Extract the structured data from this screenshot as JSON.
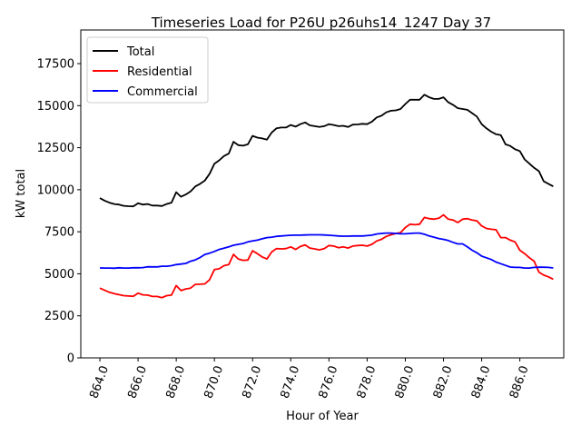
{
  "chart_data": {
    "type": "line",
    "title": "Timeseries Load for P26U p26uhs14_1247  Day 37",
    "xlabel": "Hour of Year",
    "ylabel": "kW total",
    "xlim": [
      863.0,
      888.3
    ],
    "ylim": [
      0,
      19500
    ],
    "x_ticks": [
      "864.0",
      "866.0",
      "868.0",
      "870.0",
      "872.0",
      "874.0",
      "876.0",
      "878.0",
      "880.0",
      "882.0",
      "884.0",
      "886.0"
    ],
    "y_ticks": [
      "0",
      "2500",
      "5000",
      "7500",
      "10000",
      "12500",
      "15000",
      "17500"
    ],
    "x_tick_values": [
      864,
      866,
      868,
      870,
      872,
      874,
      876,
      878,
      880,
      882,
      884,
      886
    ],
    "y_tick_values": [
      0,
      2500,
      5000,
      7500,
      10000,
      12500,
      15000,
      17500
    ],
    "legend_position": "top-left",
    "x": [
      864.0,
      864.25,
      864.5,
      864.75,
      865.0,
      865.25,
      865.5,
      865.75,
      866.0,
      866.25,
      866.5,
      866.75,
      867.0,
      867.25,
      867.5,
      867.75,
      868.0,
      868.25,
      868.5,
      868.75,
      869.0,
      869.25,
      869.5,
      869.75,
      870.0,
      870.25,
      870.5,
      870.75,
      871.0,
      871.25,
      871.5,
      871.75,
      872.0,
      872.25,
      872.5,
      872.75,
      873.0,
      873.25,
      873.5,
      873.75,
      874.0,
      874.25,
      874.5,
      874.75,
      875.0,
      875.25,
      875.5,
      875.75,
      876.0,
      876.25,
      876.5,
      876.75,
      877.0,
      877.25,
      877.5,
      877.75,
      878.0,
      878.25,
      878.5,
      878.75,
      879.0,
      879.25,
      879.5,
      879.75,
      880.0,
      880.25,
      880.5,
      880.75,
      881.0,
      881.25,
      881.5,
      881.75,
      882.0,
      882.25,
      882.5,
      882.75,
      883.0,
      883.25,
      883.5,
      883.75,
      884.0,
      884.25,
      884.5,
      884.75,
      885.0,
      885.25,
      885.5,
      885.75,
      886.0,
      886.25,
      886.5,
      886.75,
      887.0,
      887.25,
      887.5,
      887.75
    ],
    "series": [
      {
        "name": "Total",
        "color": "#000000",
        "values": [
          9500,
          9350,
          9230,
          9150,
          9120,
          9040,
          9020,
          9010,
          9200,
          9120,
          9150,
          9060,
          9060,
          9030,
          9150,
          9230,
          9850,
          9580,
          9720,
          9900,
          10200,
          10350,
          10550,
          10950,
          11550,
          11750,
          12000,
          12150,
          12850,
          12650,
          12620,
          12700,
          13200,
          13100,
          13050,
          12980,
          13400,
          13650,
          13700,
          13700,
          13850,
          13750,
          13900,
          14000,
          13830,
          13780,
          13730,
          13780,
          13900,
          13850,
          13780,
          13800,
          13730,
          13870,
          13880,
          13920,
          13900,
          14050,
          14300,
          14400,
          14600,
          14700,
          14720,
          14800,
          15100,
          15350,
          15350,
          15350,
          15650,
          15500,
          15400,
          15400,
          15500,
          15200,
          15050,
          14850,
          14800,
          14750,
          14550,
          14350,
          13900,
          13650,
          13450,
          13300,
          13250,
          12700,
          12600,
          12400,
          12300,
          11800,
          11550,
          11300,
          11100,
          10500,
          10350,
          10200
        ]
      },
      {
        "name": "Residential",
        "color": "#ff0000",
        "values": [
          4150,
          4020,
          3900,
          3820,
          3760,
          3700,
          3680,
          3660,
          3850,
          3750,
          3730,
          3650,
          3650,
          3580,
          3700,
          3730,
          4300,
          4000,
          4100,
          4150,
          4370,
          4380,
          4400,
          4650,
          5250,
          5300,
          5480,
          5550,
          6150,
          5880,
          5800,
          5820,
          6370,
          6200,
          6000,
          5880,
          6300,
          6500,
          6480,
          6500,
          6600,
          6450,
          6620,
          6720,
          6530,
          6480,
          6420,
          6500,
          6680,
          6650,
          6550,
          6600,
          6530,
          6650,
          6680,
          6700,
          6650,
          6750,
          6950,
          7050,
          7220,
          7320,
          7400,
          7450,
          7750,
          7950,
          7920,
          7950,
          8350,
          8280,
          8250,
          8300,
          8500,
          8250,
          8200,
          8050,
          8250,
          8280,
          8200,
          8150,
          7850,
          7700,
          7650,
          7620,
          7150,
          7150,
          7000,
          6900,
          6400,
          6200,
          5950,
          5750,
          5100,
          4920,
          4820,
          4680
        ]
      },
      {
        "name": "Commercial",
        "color": "#0000ff",
        "values": [
          5350,
          5340,
          5340,
          5330,
          5360,
          5340,
          5340,
          5360,
          5360,
          5370,
          5420,
          5410,
          5410,
          5450,
          5450,
          5480,
          5550,
          5580,
          5620,
          5750,
          5830,
          5970,
          6150,
          6230,
          6330,
          6450,
          6520,
          6600,
          6700,
          6750,
          6800,
          6900,
          6950,
          7000,
          7080,
          7150,
          7180,
          7230,
          7250,
          7270,
          7290,
          7300,
          7300,
          7310,
          7320,
          7320,
          7320,
          7310,
          7290,
          7270,
          7250,
          7240,
          7240,
          7250,
          7250,
          7250,
          7270,
          7300,
          7370,
          7400,
          7420,
          7420,
          7400,
          7380,
          7380,
          7400,
          7420,
          7420,
          7350,
          7250,
          7180,
          7100,
          7050,
          6980,
          6870,
          6780,
          6780,
          6600,
          6400,
          6250,
          6050,
          5950,
          5850,
          5700,
          5600,
          5500,
          5400,
          5380,
          5380,
          5340,
          5340,
          5380,
          5390,
          5390,
          5380,
          5350
        ]
      }
    ]
  }
}
